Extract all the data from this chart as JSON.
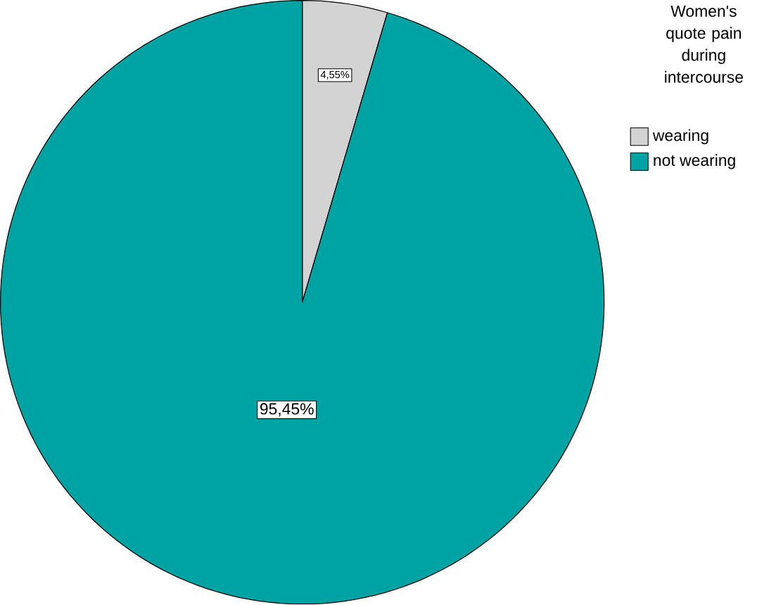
{
  "chart_data": {
    "type": "pie",
    "legend_title": "Women's quote pain during intercourse",
    "categories": [
      "wearing",
      "not wearing"
    ],
    "values": [
      4.55,
      95.45
    ],
    "colors": [
      "#d3d3d3",
      "#00a3a3"
    ],
    "value_labels": [
      "4,55%",
      "95,45%"
    ],
    "legend": "top right"
  }
}
